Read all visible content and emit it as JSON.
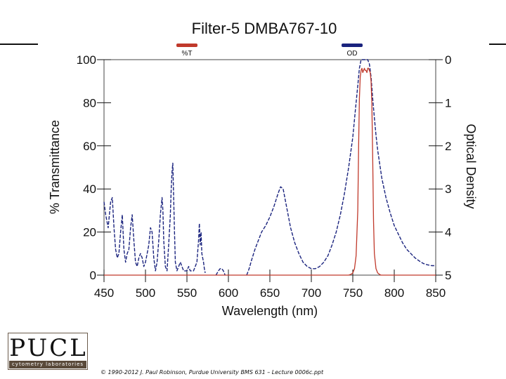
{
  "logo": {
    "text": "PUCL",
    "subtext": "cytometry laboratories"
  },
  "footer": {
    "copyright": "© 1990-2012 J. Paul Robinson, Purdue University BMS 631 – Lecture 0006c.ppt"
  },
  "colors": {
    "transmittance": "#c0392b",
    "optical_density": "#1a237e",
    "axes": "#111111",
    "logo_strip": "#5a4a3a"
  },
  "chart_data": {
    "type": "line",
    "title": "Filter-5 DMBA767-10",
    "xlabel": "Wavelength (nm)",
    "ylabel": "% Transmittance",
    "y2label": "Optical Density",
    "xlim": [
      450,
      850
    ],
    "ylim": [
      0,
      100
    ],
    "y2lim": [
      5,
      0
    ],
    "xticks": [
      "450",
      "500",
      "550",
      "600",
      "650",
      "700",
      "750",
      "800",
      "850"
    ],
    "yticks": [
      "0",
      "20",
      "40",
      "60",
      "80",
      "100"
    ],
    "y2ticks": [
      "5",
      "4",
      "3",
      "2",
      "1",
      "0"
    ],
    "grid": false,
    "legend_position": "top",
    "series": [
      {
        "name": "%T",
        "axis": "left",
        "style": "solid",
        "color": "#c0392b",
        "x": [
          450,
          745,
          748,
          750,
          752,
          754,
          756,
          757,
          758,
          759,
          760,
          761,
          762,
          763,
          764,
          765,
          766,
          767,
          768,
          769,
          770,
          771,
          772,
          773,
          774,
          775,
          776,
          778,
          780,
          782,
          784,
          850
        ],
        "y": [
          0,
          0,
          0.4,
          1,
          3,
          9,
          30,
          60,
          82,
          92,
          95,
          96,
          94,
          95,
          96,
          95,
          95,
          94,
          96,
          96,
          95,
          94,
          90,
          80,
          55,
          25,
          10,
          3,
          1,
          0.4,
          0,
          0
        ]
      },
      {
        "name": "OD",
        "axis": "right",
        "style": "dashed",
        "color": "#1a237e",
        "segments": [
          {
            "x": [
              450,
              452,
              455,
              458,
              460,
              462,
              464,
              466,
              468,
              470,
              472,
              474,
              476,
              478,
              480,
              482,
              484,
              486,
              488,
              490,
              492,
              494,
              496,
              498,
              500,
              502,
              504,
              506,
              508,
              510,
              512,
              514,
              516,
              518,
              520,
              521,
              522,
              524,
              526,
              528,
              530,
              531,
              532,
              533,
              534,
              535,
              536,
              538,
              540,
              542,
              544,
              546,
              548,
              550,
              552,
              554,
              556,
              558,
              560,
              562,
              564,
              565,
              566,
              567,
              568,
              569,
              570,
              571,
              572
            ],
            "y": [
              3.3,
              3.6,
              3.9,
              3.3,
              3.2,
              3.9,
              4.4,
              4.6,
              4.5,
              4.0,
              3.6,
              4.4,
              4.7,
              4.5,
              4.4,
              3.9,
              3.6,
              4.2,
              4.7,
              4.8,
              4.6,
              4.5,
              4.6,
              4.8,
              4.7,
              4.5,
              4.3,
              3.9,
              4.0,
              4.6,
              4.9,
              4.7,
              4.2,
              3.6,
              3.2,
              3.5,
              4.2,
              4.8,
              4.9,
              4.3,
              3.6,
              3.0,
              2.6,
              2.4,
              3.2,
              4.0,
              4.7,
              4.9,
              4.8,
              4.7,
              4.8,
              4.9,
              4.9,
              4.9,
              4.8,
              4.9,
              4.9,
              4.9,
              4.8,
              4.7,
              4.2,
              3.8,
              4.3,
              4.0,
              4.5,
              4.6,
              4.7,
              4.85,
              4.95
            ]
          },
          {
            "x": [
              585,
              588,
              590,
              592,
              594,
              596
            ],
            "y": [
              5.0,
              4.9,
              4.85,
              4.85,
              4.9,
              5.0
            ]
          },
          {
            "x": [
              622,
              625,
              628,
              632,
              636,
              640,
              645,
              650,
              655,
              660,
              663,
              666,
              670,
              675,
              680,
              685,
              690,
              695,
              700,
              705,
              710,
              715,
              720,
              725,
              730,
              735,
              740,
              745,
              750,
              753,
              756,
              758,
              760,
              762,
              764,
              766,
              768,
              770,
              772,
              774,
              776,
              778,
              780,
              785,
              790,
              795,
              800,
              805,
              810,
              815,
              820,
              825,
              830,
              835,
              840,
              845,
              850
            ],
            "y": [
              5.0,
              4.85,
              4.65,
              4.4,
              4.2,
              4.0,
              3.85,
              3.65,
              3.4,
              3.1,
              2.95,
              3.0,
              3.4,
              3.9,
              4.25,
              4.5,
              4.7,
              4.8,
              4.85,
              4.85,
              4.8,
              4.7,
              4.55,
              4.3,
              4.0,
              3.6,
              3.1,
              2.5,
              1.8,
              1.2,
              0.6,
              0.2,
              0.0,
              0.0,
              0.0,
              0.0,
              0.0,
              0.1,
              0.4,
              0.9,
              1.35,
              1.75,
              2.1,
              2.75,
              3.2,
              3.55,
              3.85,
              4.05,
              4.25,
              4.4,
              4.5,
              4.6,
              4.67,
              4.73,
              4.76,
              4.78,
              4.78
            ]
          }
        ]
      }
    ]
  }
}
